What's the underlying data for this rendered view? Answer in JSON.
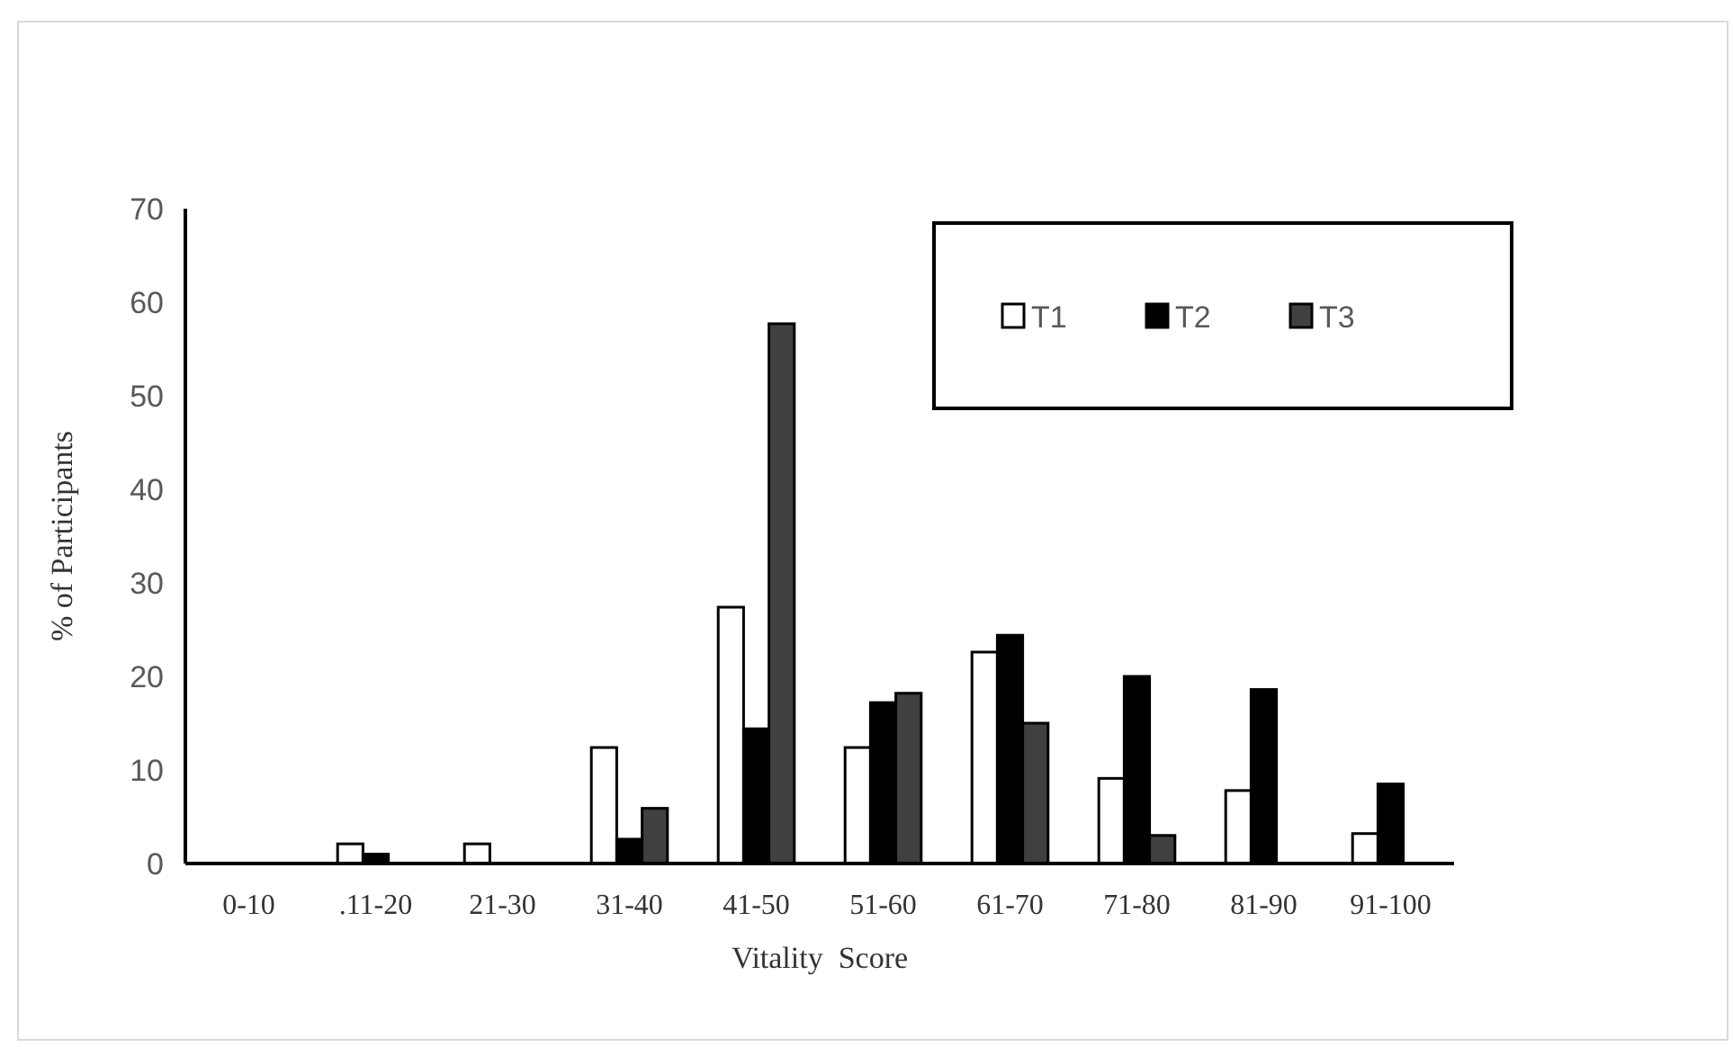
{
  "chart_data": {
    "type": "bar",
    "xlabel": "Vitality  Score",
    "ylabel": "% of Participants",
    "categories": [
      "0-10",
      ".11-20",
      "21-30",
      "31-40",
      "41-50",
      "51-60",
      "61-70",
      "71-80",
      "81-90",
      "91-100"
    ],
    "series": [
      {
        "name": "T1",
        "color": "#ffffff",
        "values": [
          0,
          2.1,
          2.1,
          12.4,
          27.4,
          12.4,
          22.6,
          9.1,
          7.8,
          3.2
        ]
      },
      {
        "name": "T2",
        "color": "#000000",
        "values": [
          0,
          1.0,
          0,
          2.6,
          14.4,
          17.2,
          24.4,
          20.0,
          18.6,
          8.5
        ]
      },
      {
        "name": "T3",
        "color": "#404040",
        "values": [
          0,
          0,
          0,
          5.9,
          57.7,
          18.2,
          15.0,
          3.0,
          0,
          0
        ]
      }
    ],
    "ylim": [
      0,
      70
    ],
    "yticks": [
      0,
      10,
      20,
      30,
      40,
      50,
      60,
      70
    ],
    "grid": false,
    "legend": "top right"
  }
}
